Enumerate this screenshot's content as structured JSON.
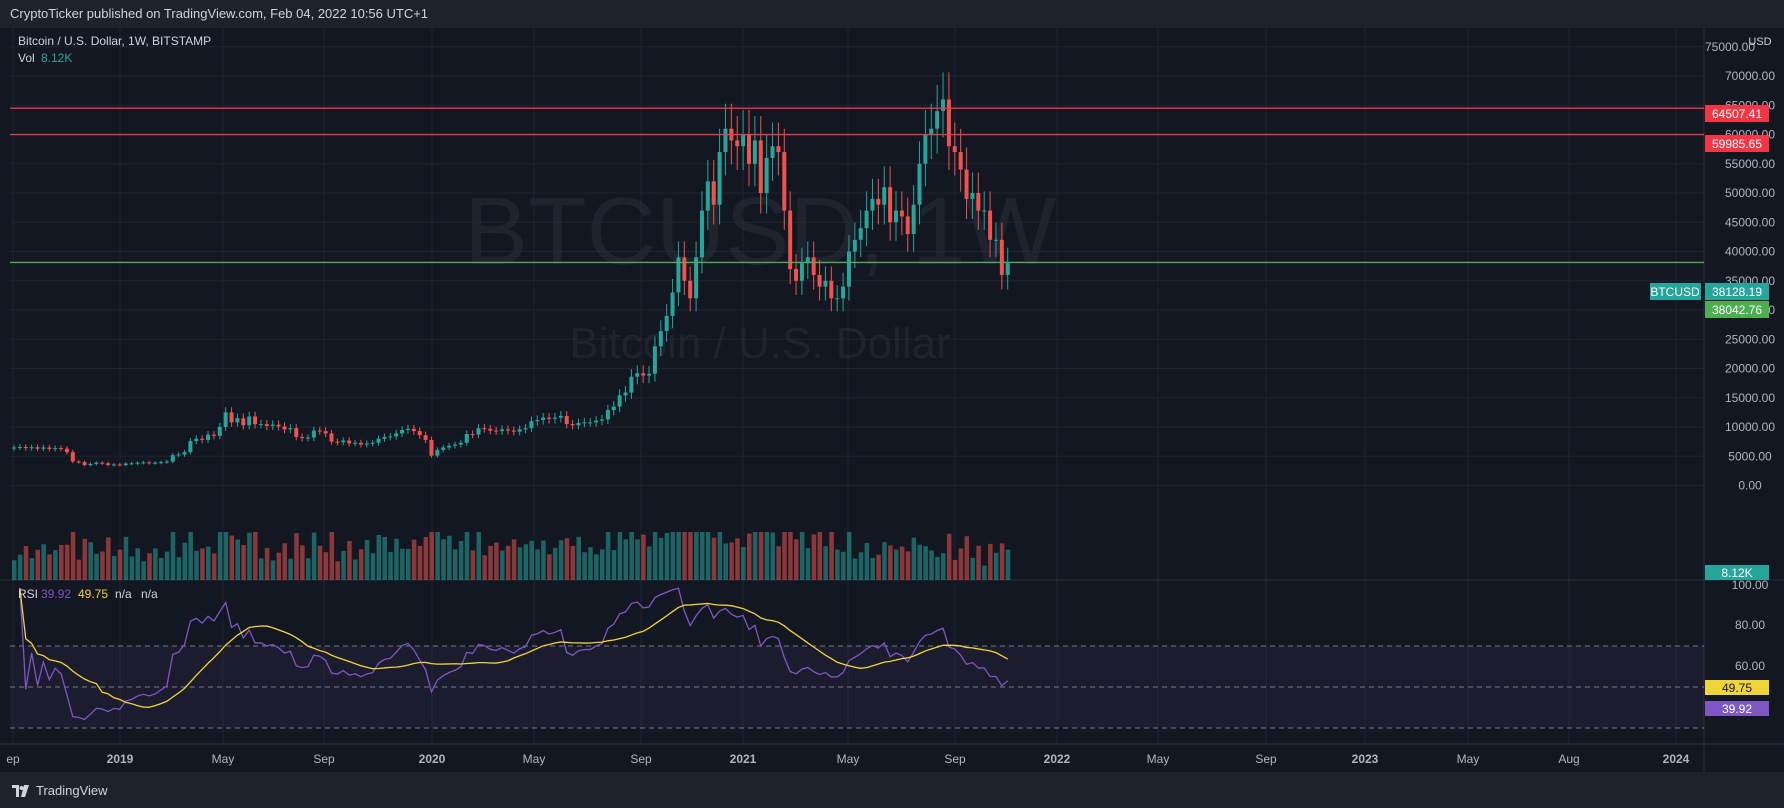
{
  "header": {
    "publish_line": "CryptoTicker published on TradingView.com, Feb 04, 2022 10:56 UTC+1"
  },
  "footer": {
    "brand": "TradingView"
  },
  "legend": {
    "symbol_line": "Bitcoin / U.S. Dollar, 1W, BITSTAMP",
    "vol_label": "Vol",
    "vol_value": "8.12K",
    "rsi_label": "RSI",
    "rsi_value": "39.92",
    "rsi_ma_value": "49.75",
    "rsi_na1": "n/a",
    "rsi_na2": "n/a"
  },
  "watermark": {
    "ticker": "BTCUSD, 1W",
    "name": "Bitcoin / U.S. Dollar"
  },
  "price_axis": {
    "currency": "USD",
    "ticks": [
      "75000.00",
      "70000.00",
      "65000.00",
      "60000.00",
      "55000.00",
      "50000.00",
      "45000.00",
      "40000.00",
      "35000.00",
      "30000.00",
      "25000.00",
      "20000.00",
      "15000.00",
      "10000.00",
      "5000.00",
      "0.00"
    ]
  },
  "rsi_axis": {
    "ticks": [
      "100.00",
      "80.00",
      "60.00"
    ]
  },
  "time_axis": {
    "labels": [
      "ep",
      "2019",
      "May",
      "Sep",
      "2020",
      "May",
      "Sep",
      "2021",
      "May",
      "Sep",
      "2022",
      "May",
      "Sep",
      "2023",
      "May",
      "Aug",
      "2024"
    ]
  },
  "colors": {
    "up": "#26a69a",
    "down": "#ef5350",
    "resistance": "#f23645",
    "support": "#4caf50",
    "rsi": "#7e57c2",
    "rsi_ma": "#f0d53a"
  },
  "chart_data": {
    "type": "candlestick",
    "symbol": "BTCUSD",
    "interval": "1W",
    "price_range": [
      -3500,
      76500
    ],
    "horizontal_lines": [
      {
        "value": 64507.41,
        "label": "64507.41",
        "color": "#f23645"
      },
      {
        "value": 59985.65,
        "label": "59985.65",
        "color": "#f23645"
      },
      {
        "value": 38128.19,
        "label": "38128.19",
        "color": "#4caf50"
      }
    ],
    "last_price": {
      "tag": "BTCUSD",
      "value": "38128.19"
    },
    "price_marker": "38042.76",
    "volume_marker": "8.12K",
    "rsi_markers": {
      "ma": "49.75",
      "rsi": "39.92"
    },
    "rsi_levels": [
      70,
      50,
      30
    ],
    "closes": [
      6500,
      6600,
      6400,
      6550,
      6300,
      6500,
      6250,
      6400,
      6300,
      5700,
      4100,
      4000,
      3500,
      3700,
      3900,
      3800,
      3500,
      3600,
      3500,
      3750,
      3800,
      3900,
      3950,
      3850,
      3900,
      4000,
      4100,
      5200,
      5300,
      5700,
      7600,
      8000,
      7800,
      8700,
      8500,
      10000,
      12500,
      10800,
      11500,
      10300,
      11800,
      10500,
      10500,
      10200,
      10400,
      10100,
      9600,
      9800,
      8300,
      8100,
      8200,
      9400,
      9300,
      8900,
      7500,
      7400,
      7700,
      7200,
      7300,
      7000,
      7200,
      7300,
      8000,
      8300,
      8400,
      8900,
      9500,
      9700,
      9300,
      8600,
      7800,
      5100,
      6100,
      6500,
      6800,
      7000,
      7300,
      8800,
      8700,
      9800,
      9700,
      9400,
      9300,
      9600,
      9400,
      9200,
      9600,
      9800,
      11000,
      11200,
      11600,
      11400,
      11600,
      11900,
      10500,
      10300,
      10700,
      10800,
      10800,
      11100,
      11300,
      12900,
      13500,
      15400,
      15900,
      18600,
      19200,
      18800,
      19100,
      23800,
      26400,
      29000,
      33000,
      39000,
      35000,
      32000,
      39000,
      47000,
      52000,
      48000,
      57000,
      61000,
      59000,
      58000,
      60000,
      55000,
      59000,
      50000,
      56000,
      58000,
      57000,
      47000,
      37000,
      35000,
      38000,
      39000,
      36000,
      34000,
      35000,
      32000,
      32000,
      34000,
      40000,
      42000,
      44000,
      47000,
      49000,
      48000,
      51000,
      45000,
      47000,
      46000,
      43000,
      48000,
      55000,
      60000,
      61000,
      64000,
      66000,
      58000,
      57000,
      54000,
      49000,
      50000,
      47000,
      47000,
      42000,
      42000,
      36000,
      38000
    ],
    "volume_note": "volume histogram shown below candles",
    "time_labels": [
      "ep",
      "2019",
      "May",
      "Sep",
      "2020",
      "May",
      "Sep",
      "2021",
      "May",
      "Sep",
      "2022",
      "May",
      "Sep",
      "2023",
      "May",
      "Aug",
      "2024"
    ]
  }
}
